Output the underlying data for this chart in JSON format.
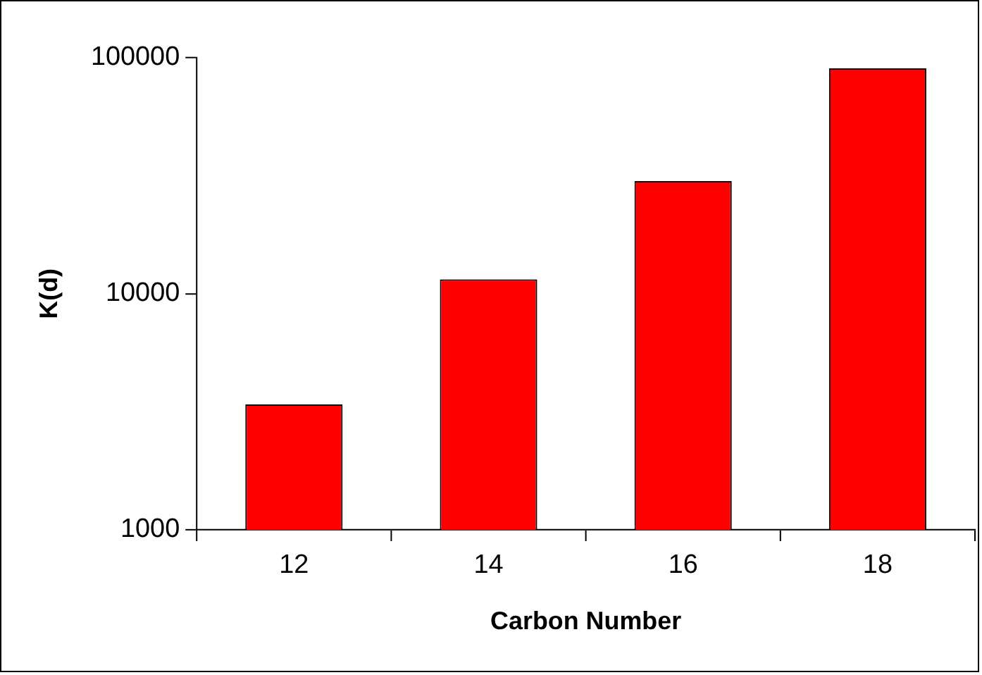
{
  "chart_data": {
    "type": "bar",
    "xlabel": "Carbon Number",
    "ylabel": "K(d)",
    "categories": [
      "12",
      "14",
      "16",
      "18"
    ],
    "values": [
      3400,
      11500,
      30000,
      90000
    ],
    "color": "#ff0000",
    "log": "y",
    "ylim": [
      1000,
      100000
    ],
    "yticks": [
      1000,
      10000,
      100000
    ],
    "grid": false,
    "legend": false
  }
}
